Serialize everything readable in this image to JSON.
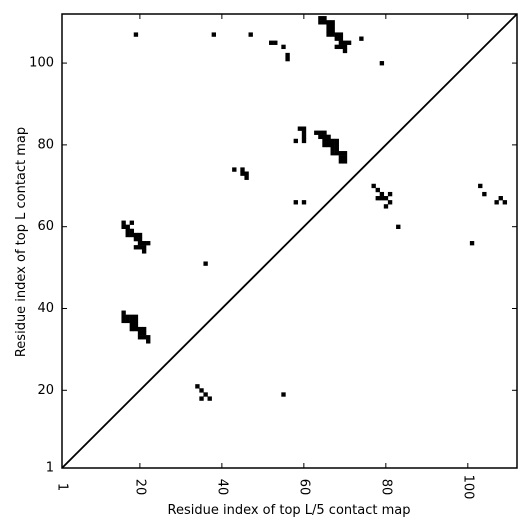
{
  "chart_data": {
    "type": "heatmap",
    "title": "",
    "xlabel": "Residue index of top L/5 contact map",
    "ylabel": "Residue index of top L contact map",
    "xlim": [
      1,
      112
    ],
    "ylim": [
      1,
      112
    ],
    "xticks": [
      1,
      20,
      40,
      60,
      80,
      100
    ],
    "yticks": [
      1,
      20,
      40,
      60,
      80,
      100
    ],
    "x_tick_labels": [
      "1",
      "20",
      "40",
      "60",
      "80",
      "100"
    ],
    "y_tick_labels": [
      "1",
      "20",
      "40",
      "60",
      "80",
      "100"
    ],
    "diagonal": true,
    "grid": false,
    "upper_triangle_contacts": [
      [
        19,
        107
      ],
      [
        38,
        107
      ],
      [
        47,
        107
      ],
      [
        52,
        105
      ],
      [
        53,
        105
      ],
      [
        55,
        104
      ],
      [
        56,
        102
      ],
      [
        56,
        101
      ],
      [
        64,
        111
      ],
      [
        65,
        111
      ],
      [
        64,
        110
      ],
      [
        65,
        110
      ],
      [
        66,
        110
      ],
      [
        67,
        110
      ],
      [
        66,
        109
      ],
      [
        67,
        109
      ],
      [
        66,
        108
      ],
      [
        67,
        108
      ],
      [
        66,
        107
      ],
      [
        67,
        107
      ],
      [
        68,
        107
      ],
      [
        69,
        107
      ],
      [
        68,
        106
      ],
      [
        69,
        106
      ],
      [
        69,
        105
      ],
      [
        70,
        105
      ],
      [
        71,
        105
      ],
      [
        68,
        104
      ],
      [
        69,
        104
      ],
      [
        70,
        104
      ],
      [
        70,
        103
      ],
      [
        74,
        106
      ],
      [
        79,
        100
      ],
      [
        59,
        84
      ],
      [
        60,
        84
      ],
      [
        60,
        83
      ],
      [
        60,
        82
      ],
      [
        60,
        81
      ],
      [
        58,
        81
      ],
      [
        63,
        83
      ],
      [
        64,
        83
      ],
      [
        65,
        83
      ],
      [
        64,
        82
      ],
      [
        65,
        82
      ],
      [
        66,
        82
      ],
      [
        65,
        81
      ],
      [
        66,
        81
      ],
      [
        67,
        81
      ],
      [
        68,
        81
      ],
      [
        65,
        80
      ],
      [
        66,
        80
      ],
      [
        67,
        80
      ],
      [
        68,
        80
      ],
      [
        67,
        79
      ],
      [
        68,
        79
      ],
      [
        67,
        78
      ],
      [
        68,
        78
      ],
      [
        69,
        78
      ],
      [
        70,
        78
      ],
      [
        69,
        77
      ],
      [
        70,
        77
      ],
      [
        69,
        76
      ],
      [
        70,
        76
      ],
      [
        58,
        66
      ],
      [
        60,
        66
      ],
      [
        43,
        74
      ],
      [
        45,
        74
      ],
      [
        45,
        73
      ],
      [
        46,
        73
      ],
      [
        46,
        72
      ],
      [
        77,
        70
      ],
      [
        78,
        69
      ],
      [
        79,
        68
      ],
      [
        81,
        68
      ],
      [
        78,
        67
      ],
      [
        79,
        67
      ],
      [
        80,
        67
      ],
      [
        81,
        66
      ],
      [
        80,
        65
      ],
      [
        83,
        60
      ],
      [
        103,
        70
      ],
      [
        104,
        68
      ],
      [
        107,
        66
      ],
      [
        108,
        67
      ],
      [
        109,
        66
      ],
      [
        101,
        56
      ]
    ],
    "lower_triangle_contacts": [
      [
        16,
        61
      ],
      [
        16,
        60
      ],
      [
        17,
        60
      ],
      [
        18,
        61
      ],
      [
        17,
        59
      ],
      [
        18,
        59
      ],
      [
        17,
        58
      ],
      [
        18,
        58
      ],
      [
        19,
        58
      ],
      [
        20,
        58
      ],
      [
        19,
        57
      ],
      [
        20,
        57
      ],
      [
        20,
        56
      ],
      [
        21,
        56
      ],
      [
        22,
        56
      ],
      [
        19,
        55
      ],
      [
        20,
        55
      ],
      [
        21,
        55
      ],
      [
        21,
        54
      ],
      [
        36,
        51
      ],
      [
        16,
        39
      ],
      [
        16,
        38
      ],
      [
        17,
        38
      ],
      [
        18,
        38
      ],
      [
        19,
        38
      ],
      [
        16,
        37
      ],
      [
        17,
        37
      ],
      [
        18,
        37
      ],
      [
        19,
        37
      ],
      [
        18,
        36
      ],
      [
        19,
        36
      ],
      [
        18,
        35
      ],
      [
        19,
        35
      ],
      [
        20,
        35
      ],
      [
        21,
        35
      ],
      [
        20,
        34
      ],
      [
        21,
        34
      ],
      [
        20,
        33
      ],
      [
        21,
        33
      ],
      [
        22,
        33
      ],
      [
        22,
        32
      ],
      [
        34,
        21
      ],
      [
        35,
        20
      ],
      [
        36,
        19
      ],
      [
        35,
        18
      ],
      [
        37,
        18
      ],
      [
        55,
        19
      ]
    ]
  }
}
